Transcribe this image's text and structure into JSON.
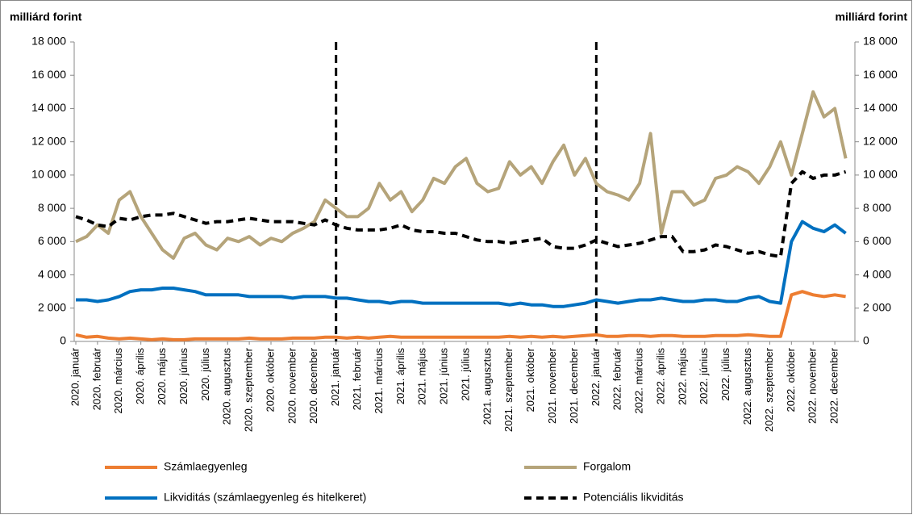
{
  "chart_data": {
    "type": "line",
    "ylabel": "milliárd forint",
    "y2label": "milliárd forint",
    "ylim": [
      0,
      18000
    ],
    "yticks": [
      0,
      {
        "value": 2000,
        "label": "2 000"
      },
      {
        "value": 4000,
        "label": "4 000"
      },
      {
        "value": 6000,
        "label": "6 000"
      },
      {
        "value": 8000,
        "label": "8 000"
      },
      {
        "value": 10000,
        "label": "10 000"
      },
      {
        "value": 12000,
        "label": "12 000"
      },
      {
        "value": 14000,
        "label": "14 000"
      },
      {
        "value": 16000,
        "label": "16 000"
      },
      {
        "value": 18000,
        "label": "18 000"
      }
    ],
    "y2lim": [
      0,
      18000
    ],
    "y2ticks": [
      0,
      {
        "value": 2000,
        "label": "2 000"
      },
      {
        "value": 4000,
        "label": "4 000"
      },
      {
        "value": 6000,
        "label": "6 000"
      },
      {
        "value": 8000,
        "label": "8 000"
      },
      {
        "value": 10000,
        "label": "10 000"
      },
      {
        "value": 12000,
        "label": "12 000"
      },
      {
        "value": 14000,
        "label": "14 000"
      },
      {
        "value": 16000,
        "label": "16 000"
      },
      {
        "value": 18000,
        "label": "18 000"
      }
    ],
    "grid": false,
    "legend": "bottom",
    "categories": [
      "2020. január",
      null,
      "2020. február",
      null,
      "2020. március",
      null,
      "2020. április",
      null,
      "2020. május",
      null,
      "2020. június",
      null,
      "2020. július",
      null,
      "2020. augusztus",
      null,
      "2020. szeptember",
      null,
      "2020. október",
      null,
      "2020. november",
      null,
      "2020. december",
      null,
      "2021. január",
      null,
      "2021. február",
      null,
      "2021. március",
      null,
      "2021. április",
      null,
      "2021. május",
      null,
      "2021. június",
      null,
      "2021. július",
      null,
      "2021. augusztus",
      null,
      "2021. szeptember",
      null,
      "2021. október",
      null,
      "2021. november",
      null,
      "2021. december",
      null,
      "2022. január",
      null,
      "2022. február",
      null,
      "2022. március",
      null,
      "2022. április",
      null,
      "2022. május",
      null,
      "2022. június",
      null,
      "2022. július",
      null,
      "2022. augusztus",
      null,
      "2022. szeptember",
      null,
      "2022. október",
      null,
      "2022. november",
      null,
      "2022. december",
      null
    ],
    "series": [
      {
        "name": "Számlaegyenleg",
        "color": "#ED7D31",
        "dash": false,
        "values": [
          400,
          250,
          300,
          200,
          150,
          200,
          150,
          100,
          150,
          100,
          100,
          150,
          150,
          150,
          150,
          150,
          200,
          150,
          150,
          150,
          200,
          200,
          200,
          250,
          250,
          200,
          250,
          200,
          250,
          300,
          250,
          250,
          250,
          250,
          250,
          250,
          250,
          250,
          250,
          250,
          300,
          250,
          300,
          250,
          300,
          250,
          300,
          350,
          400,
          300,
          300,
          350,
          350,
          300,
          350,
          350,
          300,
          300,
          300,
          350,
          350,
          350,
          400,
          350,
          300,
          300,
          2800,
          3000,
          2800,
          2700,
          2800,
          2700
        ]
      },
      {
        "name": "Forgalom",
        "color": "#B5A47A",
        "dash": false,
        "values": [
          6000,
          6300,
          7000,
          6500,
          8500,
          9000,
          7500,
          6500,
          5500,
          5000,
          6200,
          6500,
          5800,
          5500,
          6200,
          6000,
          6300,
          5800,
          6200,
          6000,
          6500,
          6800,
          7200,
          8500,
          8000,
          7500,
          7500,
          8000,
          9500,
          8500,
          9000,
          7800,
          8500,
          9800,
          9500,
          10500,
          11000,
          9500,
          9000,
          9200,
          10800,
          10000,
          10500,
          9500,
          10800,
          11800,
          10000,
          11000,
          9500,
          9000,
          8800,
          8500,
          9500,
          12500,
          6500,
          9000,
          9000,
          8200,
          8500,
          9800,
          10000,
          10500,
          10200,
          9500,
          10500,
          12000,
          10000,
          12500,
          15000,
          13500,
          14000,
          11000
        ]
      },
      {
        "name": "Likviditás (számlaegyenleg és hitelkeret)",
        "color": "#0070C0",
        "dash": false,
        "values": [
          2500,
          2500,
          2400,
          2500,
          2700,
          3000,
          3100,
          3100,
          3200,
          3200,
          3100,
          3000,
          2800,
          2800,
          2800,
          2800,
          2700,
          2700,
          2700,
          2700,
          2600,
          2700,
          2700,
          2700,
          2600,
          2600,
          2500,
          2400,
          2400,
          2300,
          2400,
          2400,
          2300,
          2300,
          2300,
          2300,
          2300,
          2300,
          2300,
          2300,
          2200,
          2300,
          2200,
          2200,
          2100,
          2100,
          2200,
          2300,
          2500,
          2400,
          2300,
          2400,
          2500,
          2500,
          2600,
          2500,
          2400,
          2400,
          2500,
          2500,
          2400,
          2400,
          2600,
          2700,
          2400,
          2300,
          6000,
          7200,
          6800,
          6600,
          7000,
          6500
        ]
      },
      {
        "name": "Potenciális likviditás",
        "color": "#000000",
        "dash": true,
        "values": [
          7500,
          7300,
          7000,
          6900,
          7400,
          7300,
          7500,
          7600,
          7600,
          7700,
          7500,
          7300,
          7100,
          7200,
          7200,
          7300,
          7400,
          7300,
          7200,
          7200,
          7200,
          7100,
          7000,
          7300,
          7000,
          6800,
          6700,
          6700,
          6700,
          6800,
          7000,
          6700,
          6600,
          6600,
          6500,
          6500,
          6300,
          6100,
          6000,
          6000,
          5900,
          6000,
          6100,
          6200,
          5700,
          5600,
          5600,
          5800,
          6100,
          5900,
          5700,
          5800,
          5900,
          6100,
          6300,
          6300,
          5400,
          5400,
          5500,
          5800,
          5700,
          5500,
          5300,
          5400,
          5200,
          5100,
          9500,
          10200,
          9800,
          10000,
          10000,
          10200
        ]
      }
    ]
  }
}
